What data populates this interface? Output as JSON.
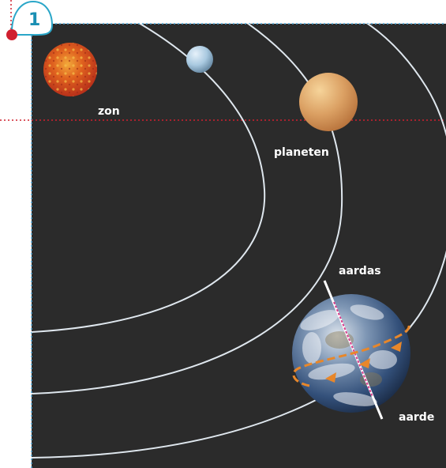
{
  "badge": {
    "number": "1"
  },
  "labels": {
    "sun": "zon",
    "planets": "planeten",
    "axis": "aardas",
    "earth": "aarde"
  },
  "colors": {
    "background": "#2b2b2b",
    "orbit": "#dfe7ee",
    "badge_border": "#2aa6c8",
    "badge_text": "#1a8fb3",
    "guide_red": "#d0202f",
    "guide_blue": "#4aa6d8",
    "axis_pink": "#d83e8c",
    "rotation_arrow": "#e8872a"
  },
  "icons": [
    "sun-icon",
    "planet-blue-icon",
    "planet-orange-icon",
    "earth-icon",
    "rotation-arrow-icon"
  ]
}
